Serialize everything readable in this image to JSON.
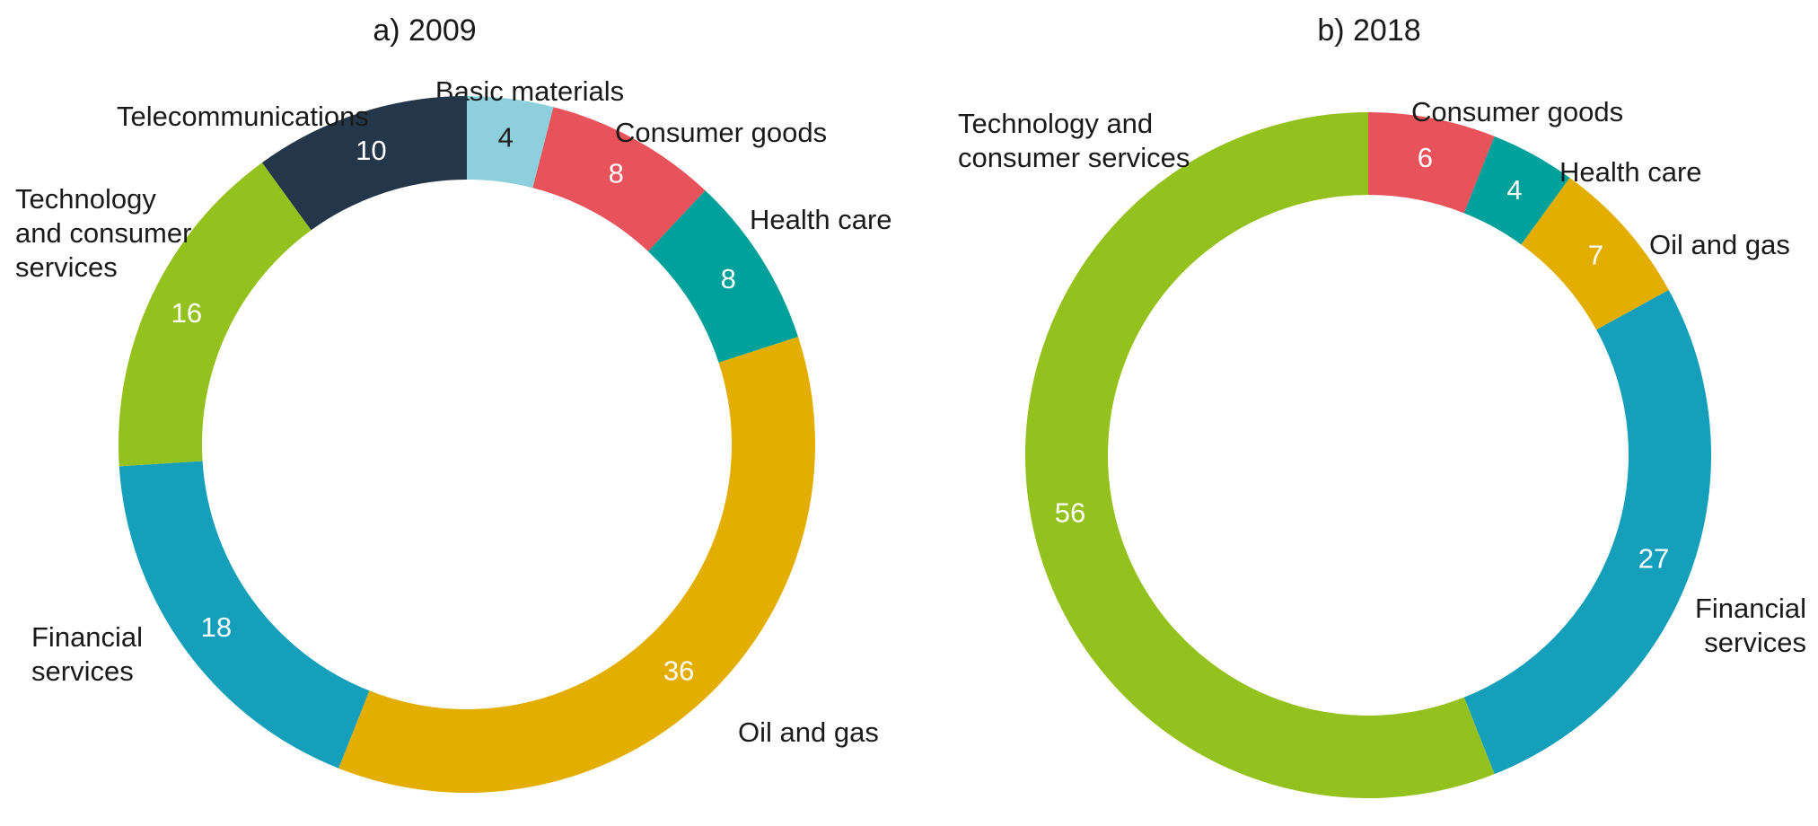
{
  "colors": {
    "basic_materials": "#8dd0dc",
    "consumer_goods": "#e8525a",
    "health_care": "#00a19a",
    "oil_and_gas": "#e3ae00",
    "financial_services": "#169fba",
    "technology_and_consumer_services": "#93c11e",
    "telecommunications": "#243649"
  },
  "chart_data": [
    {
      "type": "pie",
      "title": "a) 2009",
      "slices": [
        {
          "name": "Basic materials",
          "value": 4,
          "color_key": "basic_materials",
          "value_label_color": "dark"
        },
        {
          "name": "Consumer goods",
          "value": 8,
          "color_key": "consumer_goods"
        },
        {
          "name": "Health care",
          "value": 8,
          "color_key": "health_care"
        },
        {
          "name": "Oil and gas",
          "value": 36,
          "color_key": "oil_and_gas"
        },
        {
          "name": "Financial services",
          "value": 18,
          "color_key": "financial_services"
        },
        {
          "name": "Technology and consumer services",
          "value": 16,
          "color_key": "technology_and_consumer_services"
        },
        {
          "name": "Telecommunications",
          "value": 10,
          "color_key": "telecommunications"
        }
      ],
      "category_labels": [
        {
          "lines": [
            "Basic materials"
          ]
        },
        {
          "lines": [
            "Consumer goods"
          ]
        },
        {
          "lines": [
            "Health care"
          ]
        },
        {
          "lines": [
            "Oil and gas"
          ]
        },
        {
          "lines": [
            "Financial",
            "services"
          ]
        },
        {
          "lines": [
            "Technology",
            "and consumer",
            "services"
          ]
        },
        {
          "lines": [
            "Telecommunications"
          ]
        }
      ]
    },
    {
      "type": "pie",
      "title": "b) 2018",
      "slices": [
        {
          "name": "Consumer goods",
          "value": 6,
          "color_key": "consumer_goods"
        },
        {
          "name": "Health care",
          "value": 4,
          "color_key": "health_care"
        },
        {
          "name": "Oil and gas",
          "value": 7,
          "color_key": "oil_and_gas"
        },
        {
          "name": "Financial services",
          "value": 27,
          "color_key": "financial_services"
        },
        {
          "name": "Technology and consumer services",
          "value": 56,
          "color_key": "technology_and_consumer_services"
        }
      ],
      "category_labels": [
        {
          "lines": [
            "Consumer goods"
          ]
        },
        {
          "lines": [
            "Health care"
          ]
        },
        {
          "lines": [
            "Oil and gas"
          ]
        },
        {
          "lines": [
            "Financial",
            "services"
          ]
        },
        {
          "lines": [
            "Technology and",
            "consumer services"
          ]
        }
      ]
    }
  ]
}
